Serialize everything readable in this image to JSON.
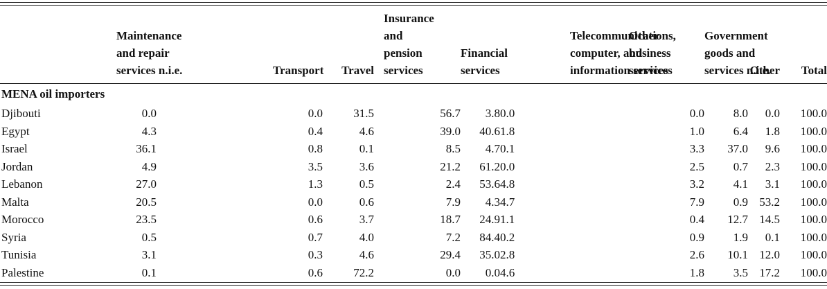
{
  "columns": [
    {
      "lines": [
        "Maintenance",
        "and repair",
        "services n.i.e."
      ]
    },
    {
      "lines": [
        "Transport"
      ]
    },
    {
      "lines": [
        "Travel"
      ]
    },
    {
      "lines": [
        "Insurance",
        "and",
        "pension",
        "services"
      ]
    },
    {
      "lines": [
        "Financial",
        "services"
      ]
    },
    {
      "lines": [
        "Telecommunications,",
        "computer, and",
        "information services"
      ]
    },
    {
      "lines": [
        "Other",
        "business",
        "services"
      ]
    },
    {
      "lines": [
        "Government",
        "goods and",
        "services n.i.e."
      ]
    },
    {
      "lines": [
        "Other"
      ]
    },
    {
      "lines": [
        "Total"
      ]
    }
  ],
  "group_label": "MENA oil importers",
  "rows": [
    {
      "name": "Djibouti",
      "values": [
        "0.0",
        "0.0",
        "31.5",
        "56.7",
        "3.8",
        "0.0",
        "0.0",
        "8.0",
        "0.0",
        "100.0"
      ]
    },
    {
      "name": "Egypt",
      "values": [
        "4.3",
        "0.4",
        "4.6",
        "39.0",
        "40.6",
        "1.8",
        "1.0",
        "6.4",
        "1.8",
        "100.0"
      ]
    },
    {
      "name": "Israel",
      "values": [
        "36.1",
        "0.8",
        "0.1",
        "8.5",
        "4.7",
        "0.1",
        "3.3",
        "37.0",
        "9.6",
        "100.0"
      ]
    },
    {
      "name": "Jordan",
      "values": [
        "4.9",
        "3.5",
        "3.6",
        "21.2",
        "61.2",
        "0.0",
        "2.5",
        "0.7",
        "2.3",
        "100.0"
      ]
    },
    {
      "name": "Lebanon",
      "values": [
        "27.0",
        "1.3",
        "0.5",
        "2.4",
        "53.6",
        "4.8",
        "3.2",
        "4.1",
        "3.1",
        "100.0"
      ]
    },
    {
      "name": "Malta",
      "values": [
        "20.5",
        "0.0",
        "0.6",
        "7.9",
        "4.3",
        "4.7",
        "7.9",
        "0.9",
        "53.2",
        "100.0"
      ]
    },
    {
      "name": "Morocco",
      "values": [
        "23.5",
        "0.6",
        "3.7",
        "18.7",
        "24.9",
        "1.1",
        "0.4",
        "12.7",
        "14.5",
        "100.0"
      ]
    },
    {
      "name": "Syria",
      "values": [
        "0.5",
        "0.7",
        "4.0",
        "7.2",
        "84.4",
        "0.2",
        "0.9",
        "1.9",
        "0.1",
        "100.0"
      ]
    },
    {
      "name": "Tunisia",
      "values": [
        "3.1",
        "0.3",
        "4.6",
        "29.4",
        "35.0",
        "2.8",
        "2.6",
        "10.1",
        "12.0",
        "100.0"
      ]
    },
    {
      "name": "Palestine",
      "values": [
        "0.1",
        "0.6",
        "72.2",
        "0.0",
        "0.0",
        "4.6",
        "1.8",
        "3.5",
        "17.2",
        "100.0"
      ]
    }
  ]
}
